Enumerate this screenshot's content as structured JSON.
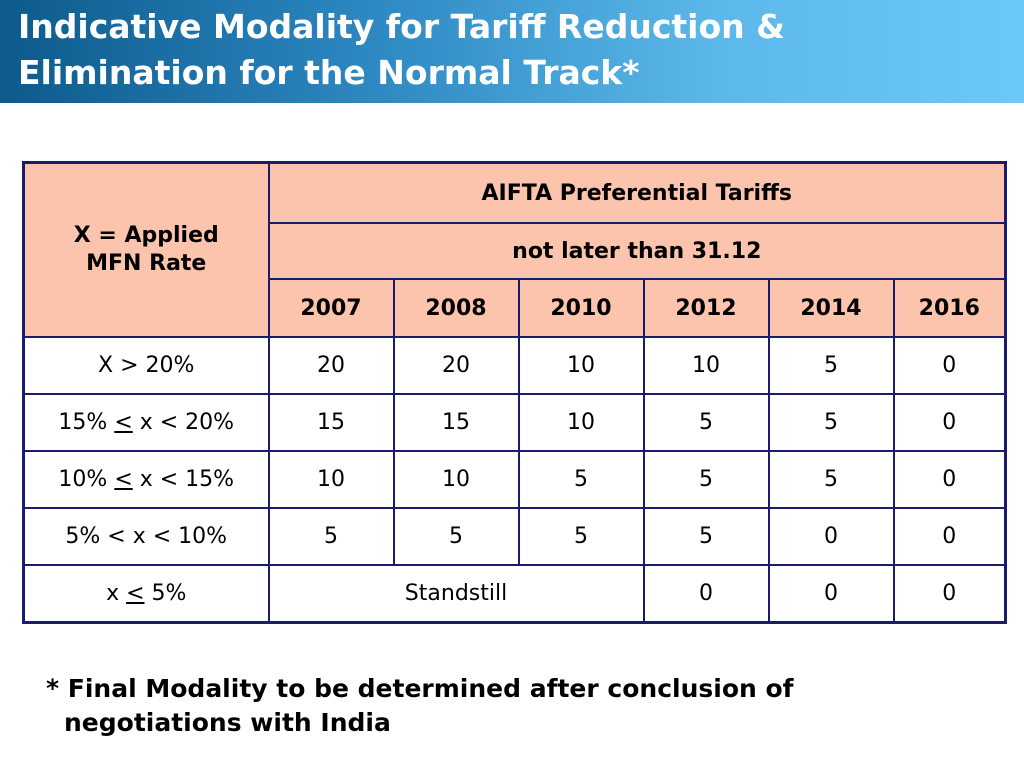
{
  "title": {
    "line1": "Indicative Modality for Tariff Reduction &",
    "line2": "Elimination for the Normal Track*"
  },
  "table": {
    "row_header_label_line1": "X = Applied",
    "row_header_label_line2": "MFN Rate",
    "group_header": "AIFTA Preferential Tariffs",
    "sub_header": "not later than 31.12",
    "years": [
      "2007",
      "2008",
      "2010",
      "2012",
      "2014",
      "2016"
    ],
    "rows": [
      {
        "prefix": "X > 20%",
        "mid": "",
        "suffix": "",
        "values": [
          "20",
          "20",
          "10",
          "10",
          "5",
          "0"
        ]
      },
      {
        "prefix": "15% ",
        "mid": "<",
        "suffix": " x < 20%",
        "values": [
          "15",
          "15",
          "10",
          "5",
          "5",
          "0"
        ]
      },
      {
        "prefix": "10% ",
        "mid": "<",
        "suffix": " x < 15%",
        "values": [
          "10",
          "10",
          "5",
          "5",
          "5",
          "0"
        ]
      },
      {
        "prefix": "5% < x < 10%",
        "mid": "",
        "suffix": "",
        "values": [
          "5",
          "5",
          "5",
          "5",
          "0",
          "0"
        ]
      },
      {
        "prefix": "x ",
        "mid": "<",
        "suffix": " 5%",
        "merged": "Standstill",
        "values": [
          "0",
          "0",
          "0"
        ]
      }
    ]
  },
  "footnote": {
    "line1": "* Final Modality to be determined after conclusion of",
    "line2": "negotiations with India"
  },
  "colors": {
    "header_fill": "#fcc4ac",
    "border": "#1a1a6e",
    "title_text": "#ffffff"
  }
}
